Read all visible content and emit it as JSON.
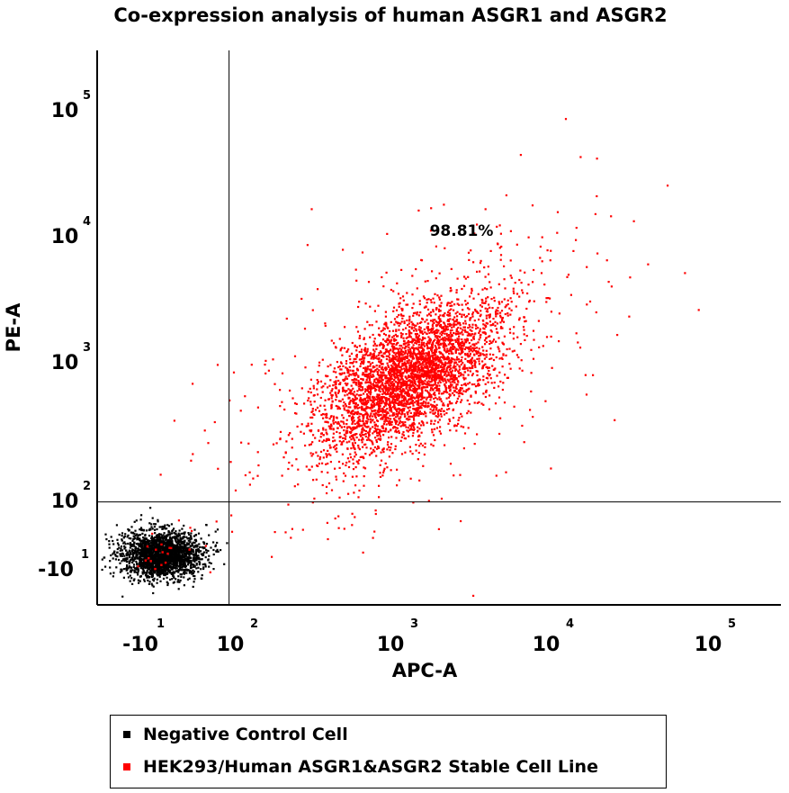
{
  "colors": {
    "negative_control": "#000000",
    "stable_line": "#ff0000",
    "gate_line": "#000000"
  },
  "chart_data": {
    "type": "scatter",
    "title": "Co-expression analysis of human ASGR1 and ASGR2",
    "xlabel": "APC-A",
    "ylabel": "PE-A",
    "x_scale": "biexponential",
    "y_scale": "biexponential",
    "x_ticks": [
      {
        "base": "-10",
        "exp": "1",
        "value": -10
      },
      {
        "base": "10",
        "exp": "2",
        "value": 100
      },
      {
        "base": "10",
        "exp": "3",
        "value": 1000
      },
      {
        "base": "10",
        "exp": "4",
        "value": 10000
      },
      {
        "base": "10",
        "exp": "5",
        "value": 100000
      }
    ],
    "y_ticks": [
      {
        "base": "-10",
        "exp": "1",
        "value": -10
      },
      {
        "base": "10",
        "exp": "2",
        "value": 100
      },
      {
        "base": "10",
        "exp": "3",
        "value": 1000
      },
      {
        "base": "10",
        "exp": "4",
        "value": 10000
      },
      {
        "base": "10",
        "exp": "5",
        "value": 100000
      }
    ],
    "gates": {
      "x": 60,
      "y": 60
    },
    "annotations": [
      {
        "text": "98.81%",
        "quadrant": "upper-right"
      }
    ],
    "series": [
      {
        "name": "Negative Control Cell",
        "color": "#000000",
        "center": [
          -5,
          -5
        ],
        "spread_decades": 0.25
      },
      {
        "name": "HEK293/Human ASGR1&ASGR2 Stable Cell Line",
        "color": "#ff0000",
        "center": [
          1200,
          750
        ],
        "spread_decades": 0.35,
        "gated_percent": "98.81%"
      }
    ],
    "legend": {
      "position": "bottom-left",
      "entries": [
        "Negative Control Cell",
        "HEK293/Human ASGR1&ASGR2 Stable Cell Line"
      ]
    },
    "grid": false
  }
}
